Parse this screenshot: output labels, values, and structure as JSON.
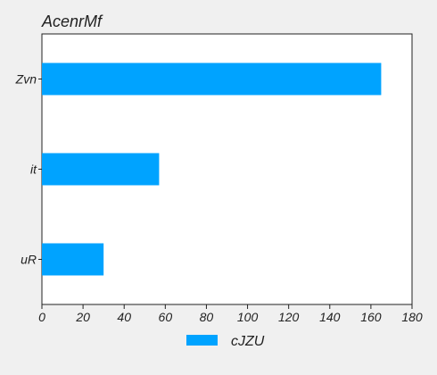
{
  "chart_data": {
    "type": "bar",
    "orientation": "horizontal",
    "title": "AcenrMf",
    "categories": [
      "Zvn",
      "it",
      "uR"
    ],
    "series": [
      {
        "name": "cJZU",
        "values": [
          165,
          57,
          30
        ],
        "color": "#00a3ff"
      }
    ],
    "xlim": [
      0,
      180
    ],
    "xticks": [
      0,
      20,
      40,
      60,
      80,
      100,
      120,
      140,
      160,
      180
    ],
    "xlabel": "",
    "ylabel": "",
    "grid": false,
    "legend_position": "bottom"
  }
}
